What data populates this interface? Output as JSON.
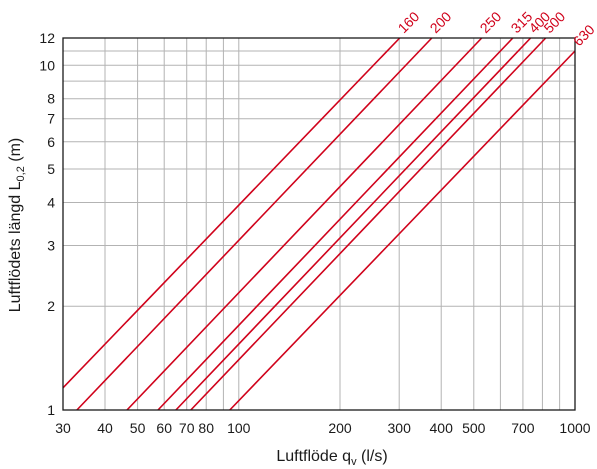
{
  "chart_data": {
    "type": "line",
    "xlabel": "Luftflöde q",
    "xlabel_sub": "v",
    "xlabel_unit": " (l/s)",
    "ylabel": "Luftflödets längd L",
    "ylabel_sub": "0,2",
    "ylabel_unit": " (m)",
    "x_scale": "log",
    "y_scale": "log",
    "xlim": [
      30,
      1000
    ],
    "ylim": [
      1,
      12
    ],
    "grid": true,
    "line_color": "#d0021b",
    "grid_color": "#b3b3b3",
    "x_ticks": [
      30,
      40,
      50,
      60,
      70,
      80,
      100,
      200,
      300,
      400,
      500,
      700,
      1000
    ],
    "x_tick_labels": [
      "30",
      "40",
      "50",
      "60",
      "70",
      "80",
      "100",
      "200",
      "300",
      "400",
      "500",
      "700",
      "1000"
    ],
    "x_minor_grid": [
      90,
      600,
      800,
      900
    ],
    "y_ticks": [
      1,
      2,
      3,
      4,
      5,
      6,
      7,
      8,
      10,
      12
    ],
    "y_tick_labels": [
      "1",
      "2",
      "3",
      "4",
      "5",
      "6",
      "7",
      "8",
      "10",
      "12"
    ],
    "y_minor_grid": [
      9,
      11
    ],
    "series": [
      {
        "name": "160",
        "x": [
          30,
          301
        ],
        "y": [
          1.16,
          12
        ]
      },
      {
        "name": "200",
        "x": [
          33,
          375
        ],
        "y": [
          1,
          12
        ]
      },
      {
        "name": "250",
        "x": [
          46.5,
          528
        ],
        "y": [
          1,
          12
        ]
      },
      {
        "name": "315",
        "x": [
          57.5,
          653
        ],
        "y": [
          1,
          12
        ]
      },
      {
        "name": "400",
        "x": [
          65,
          738
        ],
        "y": [
          1,
          12
        ]
      },
      {
        "name": "500",
        "x": [
          72,
          818
        ],
        "y": [
          1,
          12
        ]
      },
      {
        "name": "630",
        "x": [
          94,
          1000
        ],
        "y": [
          1,
          11
        ]
      }
    ]
  }
}
